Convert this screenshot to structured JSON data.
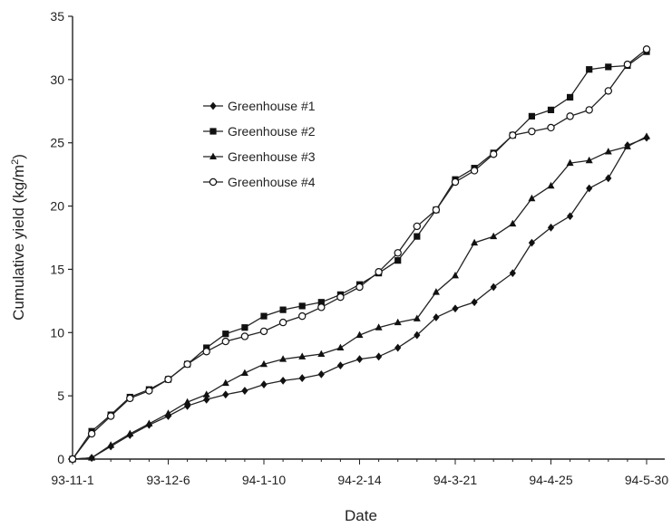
{
  "chart_data": {
    "type": "line",
    "title": "",
    "xlabel": "Date",
    "ylabel": "Cumulative yield (kg/m",
    "ylabel_sup": "2",
    "ylabel_close": ")",
    "ylim": [
      0,
      35
    ],
    "yticks": [
      0,
      5,
      10,
      15,
      20,
      25,
      30,
      35
    ],
    "xticks": [
      {
        "pos": 0,
        "label": "93-11-1"
      },
      {
        "pos": 5,
        "label": "93-12-6"
      },
      {
        "pos": 10,
        "label": "94-1-10"
      },
      {
        "pos": 15,
        "label": "94-2-14"
      },
      {
        "pos": 20,
        "label": "94-3-21"
      },
      {
        "pos": 25,
        "label": "94-4-25"
      },
      {
        "pos": 30,
        "label": "94-5-30"
      }
    ],
    "legend_position": "upper-left",
    "series": [
      {
        "name": "Greenhouse #1",
        "marker": "diamond",
        "values": [
          0,
          0.1,
          1.0,
          1.9,
          2.7,
          3.4,
          4.2,
          4.7,
          5.1,
          5.4,
          5.9,
          6.2,
          6.4,
          6.7,
          7.4,
          7.9,
          8.1,
          8.8,
          9.8,
          11.2,
          11.9,
          12.4,
          13.6,
          14.7,
          17.1,
          18.3,
          19.2,
          21.4,
          22.2,
          24.8,
          25.4
        ]
      },
      {
        "name": "Greenhouse #2",
        "marker": "square",
        "values": [
          0,
          2.2,
          3.5,
          4.9,
          5.5,
          6.3,
          7.5,
          8.8,
          9.9,
          10.4,
          11.3,
          11.8,
          12.1,
          12.4,
          13.0,
          13.8,
          14.7,
          15.7,
          17.6,
          19.7,
          22.1,
          23.0,
          24.2,
          25.6,
          27.1,
          27.6,
          28.6,
          30.8,
          31.0,
          31.1,
          32.2
        ]
      },
      {
        "name": "Greenhouse #3",
        "marker": "triangle",
        "values": [
          0,
          0.1,
          1.1,
          2.0,
          2.8,
          3.6,
          4.5,
          5.1,
          6.0,
          6.8,
          7.5,
          7.9,
          8.1,
          8.3,
          8.8,
          9.8,
          10.4,
          10.8,
          11.1,
          13.2,
          14.5,
          17.1,
          17.6,
          18.6,
          20.6,
          21.6,
          23.4,
          23.6,
          24.3,
          24.7,
          25.5
        ]
      },
      {
        "name": "Greenhouse #4",
        "marker": "circle",
        "values": [
          0,
          2.0,
          3.4,
          4.8,
          5.4,
          6.3,
          7.5,
          8.5,
          9.3,
          9.7,
          10.1,
          10.8,
          11.3,
          12.0,
          12.8,
          13.6,
          14.8,
          16.3,
          18.4,
          19.7,
          21.9,
          22.8,
          24.1,
          25.6,
          25.9,
          26.2,
          27.1,
          27.6,
          29.1,
          31.2,
          32.4
        ]
      }
    ]
  }
}
